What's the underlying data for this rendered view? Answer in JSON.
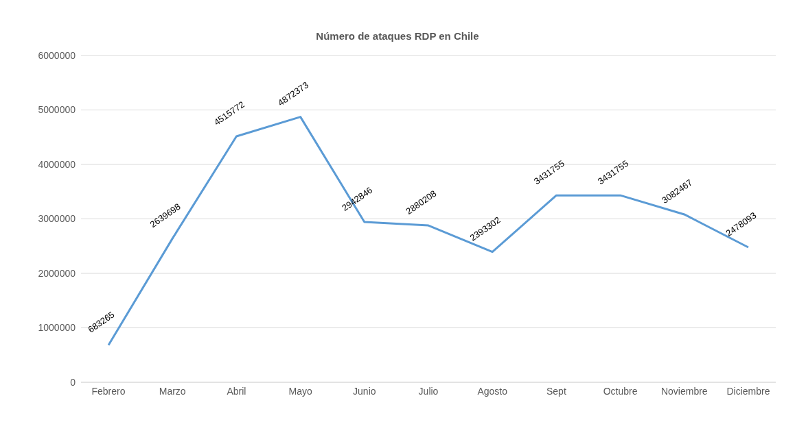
{
  "chart_data": {
    "type": "line",
    "title": "Número de ataques RDP en Chile",
    "categories": [
      "Febrero",
      "Marzo",
      "Abril",
      "Mayo",
      "Junio",
      "Julio",
      "Agosto",
      "Sept",
      "Octubre",
      "Noviembre",
      "Diciembre"
    ],
    "series": [
      {
        "color": "#5b9bd5",
        "values": [
          683265,
          2639698,
          4515772,
          4872373,
          2942846,
          2880208,
          2393302,
          3431755,
          3431755,
          3082467,
          2478093
        ],
        "value_labels": [
          "683265",
          "2639698",
          "4515772",
          "4872373",
          "2942846",
          "2880208",
          "2393302",
          "3431755",
          "3431755",
          "3082467",
          "2478093"
        ]
      }
    ],
    "ylim": [
      0,
      6000000
    ],
    "yticks": [
      0,
      1000000,
      2000000,
      3000000,
      4000000,
      5000000,
      6000000
    ],
    "grid": "y",
    "legend": false,
    "marker": "none",
    "line_style": "solid"
  }
}
